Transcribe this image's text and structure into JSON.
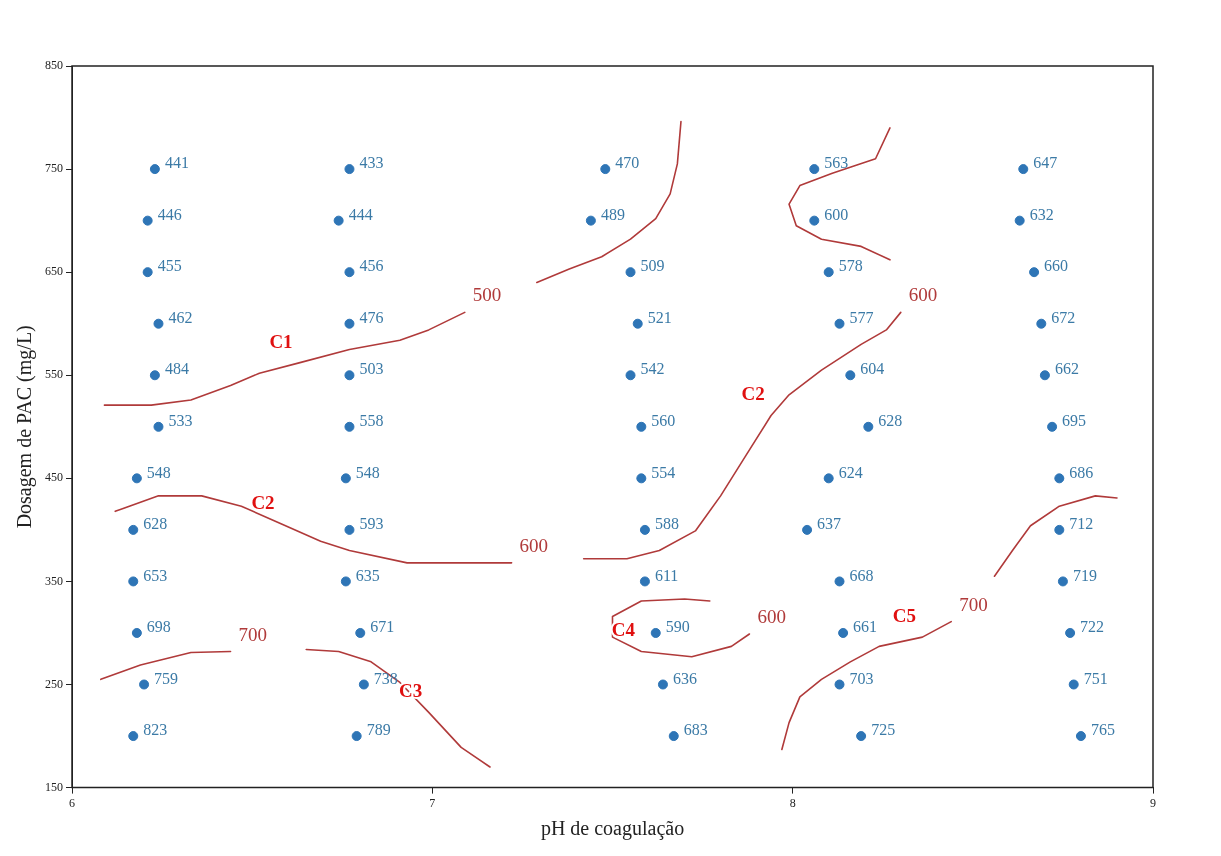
{
  "chart_data": {
    "type": "scatter",
    "xlabel": "pH de coagulação",
    "ylabel": "Dosagem de PAC (mg/L)",
    "xlim": [
      6,
      9
    ],
    "xticks": [
      6,
      7,
      8,
      9
    ],
    "ylim": [
      150,
      850
    ],
    "yticks": [
      150,
      250,
      350,
      450,
      550,
      650,
      750,
      850
    ],
    "grid": false,
    "legend": false,
    "marker": "circle",
    "series": [
      {
        "color": "#2e75b6",
        "x": [
          6.23,
          6.21,
          6.21,
          6.24,
          6.23,
          6.24,
          6.18,
          6.17,
          6.17,
          6.18,
          6.2,
          6.17,
          6.77,
          6.74,
          6.77,
          6.77,
          6.77,
          6.77,
          6.76,
          6.77,
          6.76,
          6.8,
          6.81,
          6.79,
          7.48,
          7.44,
          7.55,
          7.57,
          7.55,
          7.58,
          7.58,
          7.59,
          7.59,
          7.62,
          7.64,
          7.67,
          8.06,
          8.06,
          8.1,
          8.13,
          8.16,
          8.21,
          8.1,
          8.04,
          8.13,
          8.14,
          8.13,
          8.19,
          8.64,
          8.63,
          8.67,
          8.69,
          8.7,
          8.72,
          8.74,
          8.74,
          8.75,
          8.77,
          8.78,
          8.8
        ],
        "values": [
          750,
          700,
          650,
          600,
          550,
          500,
          450,
          400,
          350,
          300,
          250,
          200,
          750,
          700,
          650,
          600,
          550,
          500,
          450,
          400,
          350,
          300,
          250,
          200,
          750,
          700,
          650,
          600,
          550,
          500,
          450,
          400,
          350,
          300,
          250,
          200,
          750,
          700,
          650,
          600,
          550,
          500,
          450,
          400,
          350,
          300,
          250,
          200,
          750,
          700,
          650,
          600,
          550,
          500,
          450,
          400,
          350,
          300,
          250,
          200
        ]
      },
      {
        "type": "line",
        "name": "500",
        "color": "#b03a3a",
        "marker": "none",
        "line_style": "solid",
        "x": [
          6.09,
          6.22,
          6.33,
          6.44,
          6.52,
          6.63,
          6.77,
          6.91,
          6.99,
          7.09
        ],
        "values": [
          521,
          521,
          526,
          540,
          552,
          562,
          575,
          584,
          594,
          611
        ]
      },
      {
        "type": "line",
        "color": "#b03a3a",
        "marker": "none",
        "line_style": "solid",
        "x": [
          7.29,
          7.38,
          7.47,
          7.55,
          7.62,
          7.66,
          7.68,
          7.69
        ],
        "values": [
          640,
          653,
          665,
          682,
          702,
          726,
          755,
          796
        ]
      },
      {
        "type": "line",
        "name": "600",
        "color": "#b03a3a",
        "marker": "none",
        "line_style": "solid",
        "x": [
          6.12,
          6.24,
          6.36,
          6.47,
          6.58,
          6.69,
          6.77,
          6.93,
          7.22
        ],
        "values": [
          418,
          433,
          433,
          423,
          406,
          389,
          380,
          368,
          368
        ]
      },
      {
        "type": "line",
        "name": "600",
        "color": "#b03a3a",
        "marker": "none",
        "line_style": "solid",
        "x": [
          7.42,
          7.54,
          7.63,
          7.73,
          7.8,
          7.87,
          7.94,
          7.99,
          8.08,
          8.19,
          8.26,
          8.3
        ],
        "values": [
          372,
          372,
          380,
          399,
          433,
          472,
          511,
          531,
          555,
          580,
          594,
          611
        ]
      },
      {
        "type": "line",
        "color": "#b03a3a",
        "marker": "none",
        "line_style": "solid",
        "x": [
          8.27,
          8.23,
          8.11,
          8.02,
          7.99,
          8.01,
          8.08,
          8.19,
          8.27
        ],
        "values": [
          790,
          760,
          746,
          734,
          716,
          695,
          682,
          675,
          662
        ]
      },
      {
        "type": "line",
        "name": "700",
        "color": "#b03a3a",
        "marker": "none",
        "line_style": "solid",
        "x": [
          6.08,
          6.19,
          6.33,
          6.44
        ],
        "values": [
          255,
          269,
          281,
          282
        ]
      },
      {
        "type": "line",
        "color": "#b03a3a",
        "marker": "none",
        "line_style": "solid",
        "x": [
          6.65,
          6.74,
          6.83,
          6.91,
          6.99,
          7.08,
          7.16
        ],
        "values": [
          284,
          282,
          272,
          252,
          223,
          189,
          170
        ]
      },
      {
        "type": "line",
        "name": "600",
        "color": "#b03a3a",
        "marker": "none",
        "line_style": "solid",
        "x": [
          7.77,
          7.7,
          7.58,
          7.5,
          7.5,
          7.58,
          7.72,
          7.83,
          7.88
        ],
        "values": [
          331,
          333,
          331,
          316,
          296,
          282,
          277,
          287,
          299
        ]
      },
      {
        "type": "line",
        "name": "700",
        "color": "#b03a3a",
        "marker": "none",
        "line_style": "solid",
        "x": [
          7.97,
          7.99,
          8.02,
          8.08,
          8.16,
          8.24,
          8.36,
          8.44
        ],
        "values": [
          187,
          213,
          238,
          255,
          272,
          287,
          296,
          311
        ]
      },
      {
        "type": "line",
        "color": "#b03a3a",
        "marker": "none",
        "line_style": "solid",
        "x": [
          8.56,
          8.61,
          8.66,
          8.74,
          8.84,
          8.9
        ],
        "values": [
          355,
          380,
          404,
          423,
          433,
          431
        ]
      }
    ],
    "annotations": [
      {
        "text": "441",
        "x": 6.23,
        "y": 750
      },
      {
        "text": "446",
        "x": 6.21,
        "y": 700
      },
      {
        "text": "455",
        "x": 6.21,
        "y": 650
      },
      {
        "text": "462",
        "x": 6.24,
        "y": 600
      },
      {
        "text": "484",
        "x": 6.23,
        "y": 550
      },
      {
        "text": "533",
        "x": 6.24,
        "y": 500
      },
      {
        "text": "548",
        "x": 6.18,
        "y": 450
      },
      {
        "text": "628",
        "x": 6.17,
        "y": 400
      },
      {
        "text": "653",
        "x": 6.17,
        "y": 350
      },
      {
        "text": "698",
        "x": 6.18,
        "y": 300
      },
      {
        "text": "759",
        "x": 6.2,
        "y": 250
      },
      {
        "text": "823",
        "x": 6.17,
        "y": 200
      },
      {
        "text": "433",
        "x": 6.77,
        "y": 750
      },
      {
        "text": "444",
        "x": 6.74,
        "y": 700
      },
      {
        "text": "456",
        "x": 6.77,
        "y": 650
      },
      {
        "text": "476",
        "x": 6.77,
        "y": 600
      },
      {
        "text": "503",
        "x": 6.77,
        "y": 550
      },
      {
        "text": "558",
        "x": 6.77,
        "y": 500
      },
      {
        "text": "548",
        "x": 6.76,
        "y": 450
      },
      {
        "text": "593",
        "x": 6.77,
        "y": 400
      },
      {
        "text": "635",
        "x": 6.76,
        "y": 350
      },
      {
        "text": "671",
        "x": 6.8,
        "y": 300
      },
      {
        "text": "738",
        "x": 6.81,
        "y": 250
      },
      {
        "text": "789",
        "x": 6.79,
        "y": 200
      },
      {
        "text": "470",
        "x": 7.48,
        "y": 750
      },
      {
        "text": "489",
        "x": 7.44,
        "y": 700
      },
      {
        "text": "509",
        "x": 7.55,
        "y": 650
      },
      {
        "text": "521",
        "x": 7.57,
        "y": 600
      },
      {
        "text": "542",
        "x": 7.55,
        "y": 550
      },
      {
        "text": "560",
        "x": 7.58,
        "y": 500
      },
      {
        "text": "554",
        "x": 7.58,
        "y": 450
      },
      {
        "text": "588",
        "x": 7.59,
        "y": 400
      },
      {
        "text": "611",
        "x": 7.59,
        "y": 350
      },
      {
        "text": "590",
        "x": 7.62,
        "y": 300
      },
      {
        "text": "636",
        "x": 7.64,
        "y": 250
      },
      {
        "text": "683",
        "x": 7.67,
        "y": 200
      },
      {
        "text": "563",
        "x": 8.06,
        "y": 750
      },
      {
        "text": "600",
        "x": 8.06,
        "y": 700
      },
      {
        "text": "578",
        "x": 8.1,
        "y": 650
      },
      {
        "text": "577",
        "x": 8.13,
        "y": 600
      },
      {
        "text": "604",
        "x": 8.16,
        "y": 550
      },
      {
        "text": "628",
        "x": 8.21,
        "y": 500
      },
      {
        "text": "624",
        "x": 8.1,
        "y": 450
      },
      {
        "text": "637",
        "x": 8.04,
        "y": 400
      },
      {
        "text": "668",
        "x": 8.13,
        "y": 350
      },
      {
        "text": "661",
        "x": 8.14,
        "y": 300
      },
      {
        "text": "703",
        "x": 8.13,
        "y": 250
      },
      {
        "text": "725",
        "x": 8.19,
        "y": 200
      },
      {
        "text": "647",
        "x": 8.64,
        "y": 750
      },
      {
        "text": "632",
        "x": 8.63,
        "y": 700
      },
      {
        "text": "660",
        "x": 8.67,
        "y": 650
      },
      {
        "text": "672",
        "x": 8.69,
        "y": 600
      },
      {
        "text": "662",
        "x": 8.7,
        "y": 550
      },
      {
        "text": "695",
        "x": 8.72,
        "y": 500
      },
      {
        "text": "686",
        "x": 8.74,
        "y": 450
      },
      {
        "text": "712",
        "x": 8.74,
        "y": 400
      },
      {
        "text": "719",
        "x": 8.75,
        "y": 350
      },
      {
        "text": "722",
        "x": 8.77,
        "y": 300
      },
      {
        "text": "751",
        "x": 8.78,
        "y": 250
      },
      {
        "text": "765",
        "x": 8.8,
        "y": 200
      },
      {
        "text": "C1",
        "x": 6.63,
        "y": 562
      },
      {
        "text": "C2",
        "x": 6.58,
        "y": 406
      },
      {
        "text": "C2",
        "x": 7.94,
        "y": 511
      },
      {
        "text": "C3",
        "x": 6.99,
        "y": 223
      },
      {
        "text": "C4",
        "x": 7.58,
        "y": 282
      },
      {
        "text": "C5",
        "x": 8.36,
        "y": 296
      }
    ]
  }
}
